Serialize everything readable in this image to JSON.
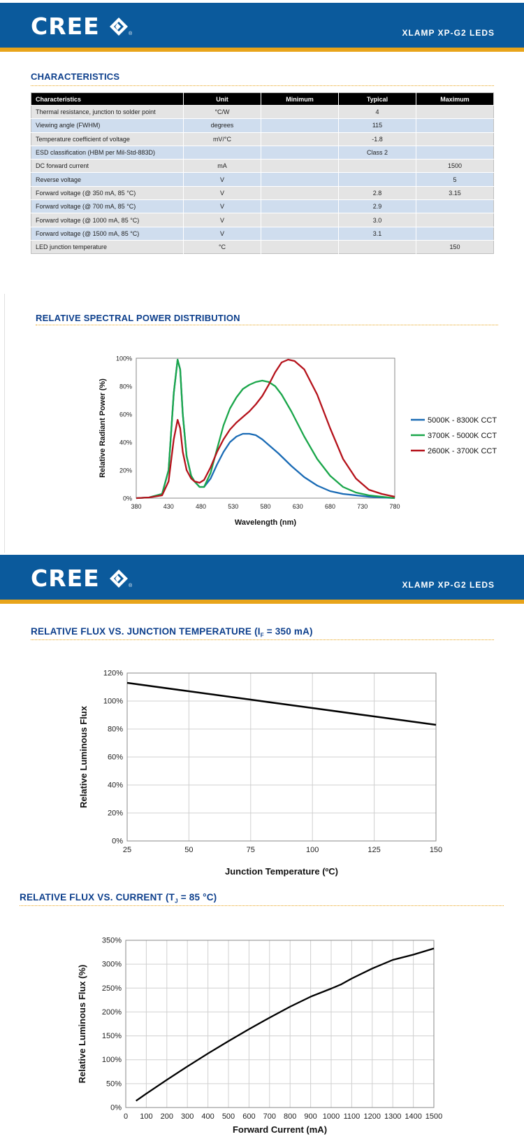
{
  "header1": {
    "logo": "CREE",
    "product": "XLAMP XP-G2 LEDS"
  },
  "header2": {
    "logo": "CREE",
    "product": "XLAMP XP-G2 LEDS"
  },
  "characteristics": {
    "title": "CHARACTERISTICS",
    "columns": [
      "Characteristics",
      "Unit",
      "Minimum",
      "Typical",
      "Maximum"
    ],
    "rows": [
      [
        "Thermal resistance, junction to solder point",
        "°C/W",
        "",
        "4",
        ""
      ],
      [
        "Viewing angle (FWHM)",
        "degrees",
        "",
        "115",
        ""
      ],
      [
        "Temperature coefficient of voltage",
        "mV/°C",
        "",
        "-1.8",
        ""
      ],
      [
        "ESD classification (HBM per Mil-Std-883D)",
        "",
        "",
        "Class 2",
        ""
      ],
      [
        "DC forward current",
        "mA",
        "",
        "",
        "1500"
      ],
      [
        "Reverse voltage",
        "V",
        "",
        "",
        "5"
      ],
      [
        "Forward voltage (@ 350 mA, 85 °C)",
        "V",
        "",
        "2.8",
        "3.15"
      ],
      [
        "Forward voltage (@ 700 mA, 85 °C)",
        "V",
        "",
        "2.9",
        ""
      ],
      [
        "Forward voltage (@ 1000 mA, 85 °C)",
        "V",
        "",
        "3.0",
        ""
      ],
      [
        "Forward voltage (@ 1500 mA, 85 °C)",
        "V",
        "",
        "3.1",
        ""
      ],
      [
        "LED junction temperature",
        "°C",
        "",
        "",
        "150"
      ]
    ]
  },
  "spectral": {
    "title": "RELATIVE SPECTRAL POWER DISTRIBUTION"
  },
  "flux_temp": {
    "title": "RELATIVE FLUX VS. JUNCTION TEMPERATURE (I",
    "title_sub": "F",
    "title_end": " = 350 mA)"
  },
  "flux_current": {
    "title": "RELATIVE FLUX VS. CURRENT (T",
    "title_sub": "J",
    "title_end": " = 85 °C)"
  },
  "colors": {
    "brand_blue": "#0b5a9c",
    "accent_gold": "#e8a41a",
    "title_navy": "#0d3f8c",
    "cool": "#1a6bb5",
    "neutral": "#1aa64a",
    "warm": "#b5121b"
  },
  "chart_data": [
    {
      "type": "line",
      "title": "",
      "xlabel": "Wavelength (nm)",
      "ylabel": "Relative Radiant Power (%)",
      "xlim": [
        380,
        780
      ],
      "ylim": [
        0,
        100
      ],
      "xticks": [
        "380",
        "430",
        "480",
        "530",
        "580",
        "630",
        "680",
        "730",
        "780"
      ],
      "yticks": [
        "0%",
        "20%",
        "40%",
        "60%",
        "80%",
        "100%"
      ],
      "legend_position": "right",
      "series": [
        {
          "name": "5000K - 8300K CCT",
          "color": "#1a6bb5",
          "x": [
            380,
            400,
            420,
            430,
            438,
            444,
            448,
            452,
            458,
            465,
            470,
            478,
            485,
            495,
            505,
            515,
            525,
            535,
            545,
            555,
            565,
            575,
            585,
            600,
            620,
            640,
            660,
            680,
            700,
            720,
            740,
            760,
            780
          ],
          "values": [
            0,
            0.5,
            3,
            20,
            75,
            99,
            92,
            60,
            30,
            16,
            12,
            8,
            8,
            14,
            24,
            33,
            40,
            44,
            46,
            46,
            45,
            42,
            38,
            32,
            23,
            15,
            9,
            5,
            3,
            2,
            1,
            0.5,
            0
          ]
        },
        {
          "name": "3700K - 5000K CCT",
          "color": "#1aa64a",
          "x": [
            380,
            400,
            420,
            430,
            438,
            444,
            448,
            452,
            458,
            465,
            470,
            478,
            485,
            495,
            505,
            515,
            525,
            535,
            545,
            555,
            565,
            575,
            585,
            595,
            605,
            620,
            640,
            660,
            680,
            700,
            720,
            740,
            760,
            780
          ],
          "values": [
            0,
            0.5,
            3,
            20,
            75,
            99,
            92,
            60,
            30,
            16,
            12,
            8,
            8,
            18,
            35,
            52,
            64,
            72,
            78,
            81,
            83,
            84,
            83,
            80,
            74,
            62,
            44,
            28,
            16,
            8,
            4,
            2,
            1,
            0
          ]
        },
        {
          "name": "2600K - 3700K CCT",
          "color": "#b5121b",
          "x": [
            380,
            400,
            420,
            430,
            438,
            444,
            448,
            452,
            458,
            465,
            470,
            478,
            485,
            495,
            505,
            515,
            525,
            535,
            545,
            555,
            565,
            575,
            585,
            595,
            605,
            615,
            625,
            640,
            660,
            680,
            700,
            720,
            740,
            760,
            780
          ],
          "values": [
            0,
            0.5,
            2,
            12,
            42,
            56,
            50,
            33,
            20,
            14,
            12,
            11,
            13,
            22,
            33,
            42,
            49,
            54,
            58,
            62,
            67,
            73,
            81,
            90,
            97,
            99,
            98,
            92,
            74,
            50,
            28,
            14,
            6,
            3,
            1
          ]
        }
      ]
    },
    {
      "type": "line",
      "title": "",
      "xlabel": "Junction Temperature (ºC)",
      "ylabel": "Relative Luminous Flux",
      "xlim": [
        25,
        150
      ],
      "ylim": [
        0,
        120
      ],
      "xticks": [
        "25",
        "50",
        "75",
        "100",
        "125",
        "150"
      ],
      "yticks": [
        "0%",
        "20%",
        "40%",
        "60%",
        "80%",
        "100%",
        "120%"
      ],
      "series": [
        {
          "name": "flux",
          "color": "#000000",
          "x": [
            25,
            50,
            75,
            100,
            125,
            150
          ],
          "values": [
            113,
            107,
            101,
            95,
            89,
            83
          ]
        }
      ]
    },
    {
      "type": "line",
      "title": "",
      "xlabel": "Forward Current (mA)",
      "ylabel": "Relative Luminous Flux (%)",
      "xlim": [
        0,
        1500
      ],
      "ylim": [
        0,
        350
      ],
      "xticks": [
        "0",
        "100",
        "200",
        "300",
        "400",
        "500",
        "600",
        "700",
        "800",
        "900",
        "1000",
        "1100",
        "1200",
        "1300",
        "1400",
        "1500"
      ],
      "yticks": [
        "0%",
        "50%",
        "100%",
        "150%",
        "200%",
        "250%",
        "300%",
        "350%"
      ],
      "series": [
        {
          "name": "flux",
          "color": "#000000",
          "x": [
            50,
            100,
            200,
            300,
            400,
            500,
            600,
            700,
            800,
            900,
            1000,
            1050,
            1100,
            1200,
            1300,
            1400,
            1500
          ],
          "values": [
            14,
            29,
            58,
            86,
            113,
            139,
            164,
            188,
            211,
            232,
            249,
            258,
            270,
            291,
            309,
            320,
            333
          ]
        }
      ]
    }
  ]
}
